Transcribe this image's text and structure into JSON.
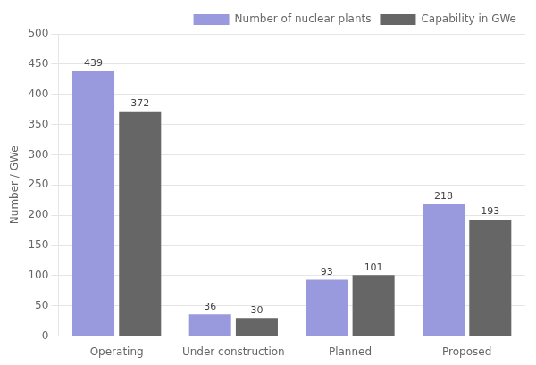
{
  "chart_data": {
    "type": "bar",
    "ylabel": "Number / GWe",
    "categories": [
      "Operating",
      "Under construction",
      "Planned",
      "Proposed"
    ],
    "series": [
      {
        "name": "Number of nuclear plants",
        "color": "#9999dd",
        "values": [
          439,
          36,
          93,
          218
        ]
      },
      {
        "name": "Capability in GWe",
        "color": "#666666",
        "values": [
          372,
          30,
          101,
          193
        ]
      }
    ],
    "ylim": [
      0,
      500
    ],
    "yticks": [
      0,
      50,
      100,
      150,
      200,
      250,
      300,
      350,
      400,
      450,
      500
    ],
    "grid": true,
    "legend": "upper right",
    "data_labels": true
  }
}
